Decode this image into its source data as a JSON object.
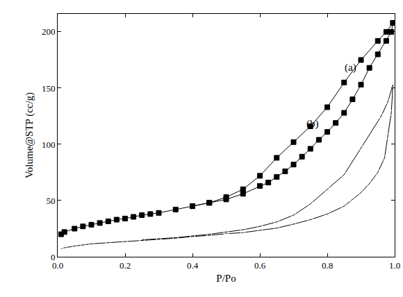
{
  "chart_data": {
    "type": "scatter",
    "x_label": "P/Po",
    "y_label": "Volume@STP (cc/g)",
    "xlim": [
      0,
      1.0
    ],
    "ylim": [
      0,
      216
    ],
    "xticks": [
      {
        "value": 0,
        "label": "0.0"
      },
      0.2,
      0.4,
      0.6,
      0.8,
      {
        "value": 1.0,
        "label": "1.0"
      }
    ],
    "yticks": [
      0,
      50,
      100,
      150,
      200
    ],
    "grid": false,
    "series": [
      {
        "color": "#000000",
        "marker": "square",
        "line_style": "solid",
        "x": [
          0.01,
          0.02,
          0.05,
          0.075,
          0.1,
          0.125,
          0.15,
          0.175,
          0.2,
          0.225,
          0.25,
          0.275,
          0.3,
          0.35,
          0.4,
          0.45,
          0.5,
          0.55,
          0.6,
          0.625,
          0.65,
          0.675,
          0.7,
          0.725,
          0.75,
          0.775,
          0.8,
          0.825,
          0.85,
          0.875,
          0.9,
          0.925,
          0.95,
          0.975,
          0.99,
          0.995
        ],
        "values": [
          20,
          22,
          25,
          27,
          28.5,
          30,
          31.5,
          33,
          34,
          35.5,
          37,
          38,
          39,
          42,
          45,
          48,
          51,
          56,
          63,
          66,
          71,
          76,
          82,
          89,
          96,
          104,
          111,
          119,
          128,
          140,
          153,
          168,
          180,
          192,
          200,
          208
        ]
      },
      {
        "color": "#000000",
        "marker": "square",
        "line_style": "solid",
        "x": [
          0.995,
          0.975,
          0.95,
          0.9,
          0.85,
          0.8,
          0.75,
          0.7,
          0.65,
          0.6,
          0.55,
          0.5,
          0.45,
          0.4
        ],
        "values": [
          208,
          200,
          192,
          175,
          155,
          133,
          116,
          102,
          88,
          72,
          60,
          53,
          48,
          45
        ]
      },
      {
        "color": "#000000",
        "marker": "circle-open",
        "line_style": "solid",
        "x": [
          0.01,
          0.02,
          0.05,
          0.075,
          0.1,
          0.15,
          0.2,
          0.25,
          0.3,
          0.35,
          0.4,
          0.45,
          0.5,
          0.55,
          0.6,
          0.65,
          0.7,
          0.75,
          0.8,
          0.85,
          0.875,
          0.9,
          0.925,
          0.95,
          0.97,
          0.98,
          0.99,
          0.995
        ],
        "values": [
          7,
          8,
          9.5,
          10.5,
          11.5,
          12.5,
          13.5,
          14.5,
          15.5,
          16.5,
          18,
          19,
          20.5,
          21.5,
          23.5,
          25.5,
          29,
          33,
          38,
          45,
          51,
          57,
          65,
          75,
          88,
          107,
          128,
          153
        ]
      },
      {
        "color": "#000000",
        "marker": "circle-open",
        "line_style": "solid",
        "x": [
          0.995,
          0.98,
          0.96,
          0.9,
          0.85,
          0.8,
          0.75,
          0.7,
          0.65,
          0.6,
          0.55,
          0.5,
          0.45,
          0.4,
          0.35,
          0.3,
          0.25
        ],
        "values": [
          153,
          138,
          125,
          97,
          73,
          60,
          47,
          37,
          31,
          27,
          24,
          22,
          20,
          18.5,
          17,
          16,
          15
        ]
      }
    ],
    "annotations": [
      {
        "text": "(a)",
        "x": 0.87,
        "y": 168
      },
      {
        "text": "(b)",
        "x": 0.757,
        "y": 118
      }
    ]
  }
}
